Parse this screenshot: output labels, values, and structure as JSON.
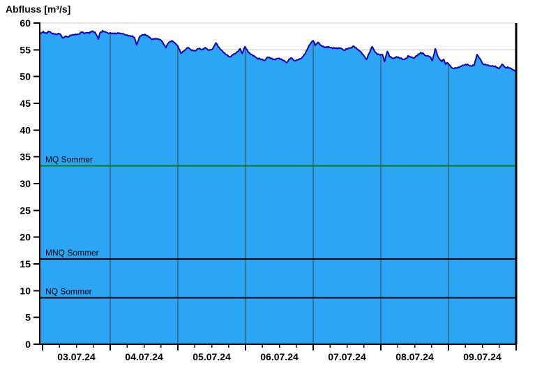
{
  "title": "Abfluss [m³/s]",
  "chart_data": {
    "type": "area",
    "title": "Abfluss [m³/s]",
    "ylabel": "Abfluss [m³/s]",
    "xlabel": "",
    "ylim": [
      0,
      60
    ],
    "y_tick_step": 5,
    "x_tick_labels": [
      "03.07.24",
      "04.07.24",
      "05.07.24",
      "06.07.24",
      "07.07.24",
      "08.07.24",
      "09.07.24"
    ],
    "x_domain_hours": [
      -1,
      168
    ],
    "x_major_tick_hours": 24,
    "x_minor_tick_hours": 6,
    "legend": "none",
    "grid": {
      "horizontal": true,
      "vertical_day_lines": true
    },
    "series": [
      {
        "name": "Abfluss",
        "unit": "m³/s",
        "points": [
          [
            -1,
            57.9
          ],
          [
            0.3,
            58.4
          ],
          [
            1.3,
            58.1
          ],
          [
            2.3,
            58.4
          ],
          [
            3.5,
            58.0
          ],
          [
            4.8,
            57.9
          ],
          [
            6,
            58.0
          ],
          [
            7.2,
            57.2
          ],
          [
            8,
            57.5
          ],
          [
            9,
            57.4
          ],
          [
            10.2,
            57.7
          ],
          [
            11.4,
            57.8
          ],
          [
            12.7,
            57.9
          ],
          [
            13.9,
            58.3
          ],
          [
            14.6,
            58.1
          ],
          [
            15.6,
            58.2
          ],
          [
            16.6,
            58.1
          ],
          [
            17.6,
            58.5
          ],
          [
            18.6,
            58.3
          ],
          [
            19.3,
            57.6
          ],
          [
            19.8,
            57.0
          ],
          [
            20.3,
            58.1
          ],
          [
            21.3,
            58.6
          ],
          [
            22.5,
            58.3
          ],
          [
            23.3,
            58.1
          ],
          [
            24,
            58.2
          ],
          [
            25,
            58.1
          ],
          [
            26,
            58.0
          ],
          [
            27,
            58.1
          ],
          [
            28.2,
            58.0
          ],
          [
            29.4,
            57.8
          ],
          [
            30.7,
            57.6
          ],
          [
            31.9,
            57.6
          ],
          [
            32.6,
            57.3
          ],
          [
            33.4,
            55.9
          ],
          [
            34.3,
            57.3
          ],
          [
            35.3,
            57.8
          ],
          [
            36.3,
            57.9
          ],
          [
            37.6,
            57.4
          ],
          [
            38.8,
            56.9
          ],
          [
            39.8,
            57.1
          ],
          [
            41,
            57.0
          ],
          [
            42.2,
            56.7
          ],
          [
            43.7,
            55.4
          ],
          [
            44.7,
            56.3
          ],
          [
            45.9,
            56.7
          ],
          [
            47.4,
            56.0
          ],
          [
            47.9,
            55.8
          ],
          [
            48.6,
            55.0
          ],
          [
            49.1,
            54.3
          ],
          [
            50.4,
            54.9
          ],
          [
            51.6,
            55.4
          ],
          [
            52.8,
            54.9
          ],
          [
            54.1,
            54.8
          ],
          [
            55.3,
            55.2
          ],
          [
            56.5,
            55.0
          ],
          [
            57.8,
            55.4
          ],
          [
            59,
            54.9
          ],
          [
            60.2,
            55.1
          ],
          [
            61.5,
            56.3
          ],
          [
            62.7,
            55.4
          ],
          [
            63.9,
            54.7
          ],
          [
            65.2,
            54.1
          ],
          [
            66.4,
            53.7
          ],
          [
            67.6,
            54.1
          ],
          [
            68.8,
            54.5
          ],
          [
            70.1,
            55.2
          ],
          [
            70.8,
            54.3
          ],
          [
            71.8,
            55.6
          ],
          [
            73,
            54.5
          ],
          [
            74.3,
            54.1
          ],
          [
            75,
            53.9
          ],
          [
            76.2,
            53.4
          ],
          [
            77.5,
            53.2
          ],
          [
            78.7,
            53.0
          ],
          [
            79.9,
            53.6
          ],
          [
            81.9,
            53.2
          ],
          [
            83.6,
            53.4
          ],
          [
            85.4,
            53.0
          ],
          [
            86.6,
            52.6
          ],
          [
            88.1,
            53.5
          ],
          [
            89.3,
            53.0
          ],
          [
            90.5,
            53.1
          ],
          [
            91.8,
            53.4
          ],
          [
            92.8,
            54.1
          ],
          [
            93.5,
            54.7
          ],
          [
            94.2,
            55.4
          ],
          [
            95.2,
            56.3
          ],
          [
            96,
            56.7
          ],
          [
            96.7,
            55.8
          ],
          [
            97.7,
            56.4
          ],
          [
            98.9,
            55.8
          ],
          [
            100.1,
            55.4
          ],
          [
            101.4,
            55.6
          ],
          [
            102.6,
            55.4
          ],
          [
            103.3,
            55.4
          ],
          [
            104.6,
            55.2
          ],
          [
            105.8,
            55.3
          ],
          [
            107,
            54.9
          ],
          [
            108.3,
            55.2
          ],
          [
            109.5,
            55.4
          ],
          [
            110.2,
            55.7
          ],
          [
            111.2,
            55.4
          ],
          [
            112.7,
            54.7
          ],
          [
            113.7,
            54.1
          ],
          [
            114.9,
            53.2
          ],
          [
            116.2,
            54.7
          ],
          [
            116.9,
            55.6
          ],
          [
            118.1,
            54.5
          ],
          [
            119.4,
            54.1
          ],
          [
            120.6,
            54.1
          ],
          [
            121.3,
            52.8
          ],
          [
            122.3,
            54.7
          ],
          [
            123.1,
            53.7
          ],
          [
            124.3,
            53.4
          ],
          [
            125.5,
            53.7
          ],
          [
            126.8,
            53.4
          ],
          [
            128,
            53.2
          ],
          [
            129.2,
            53.4
          ],
          [
            129.7,
            53.9
          ],
          [
            130.5,
            53.7
          ],
          [
            131.7,
            53.4
          ],
          [
            132.9,
            53.9
          ],
          [
            134.2,
            54.5
          ],
          [
            134.9,
            54.4
          ],
          [
            135.9,
            53.9
          ],
          [
            137.4,
            53.7
          ],
          [
            138.3,
            53.0
          ],
          [
            139.3,
            55.2
          ],
          [
            140.3,
            53.7
          ],
          [
            141.6,
            52.8
          ],
          [
            142.3,
            53.2
          ],
          [
            143,
            52.3
          ],
          [
            143.5,
            52.6
          ],
          [
            144.8,
            51.9
          ],
          [
            145.7,
            51.5
          ],
          [
            147,
            51.6
          ],
          [
            148.2,
            51.9
          ],
          [
            149.4,
            52.1
          ],
          [
            150.7,
            52.3
          ],
          [
            151.9,
            52.0
          ],
          [
            153.1,
            52.1
          ],
          [
            154.1,
            54.1
          ],
          [
            155.1,
            53.4
          ],
          [
            156.3,
            52.3
          ],
          [
            157.6,
            52.1
          ],
          [
            158.8,
            52.0
          ],
          [
            160,
            51.9
          ],
          [
            161.3,
            51.7
          ],
          [
            162,
            51.5
          ],
          [
            163,
            52.3
          ],
          [
            164.2,
            51.7
          ],
          [
            165,
            51.8
          ],
          [
            166.2,
            51.5
          ],
          [
            166.9,
            51.3
          ],
          [
            167.4,
            51.1
          ],
          [
            168,
            51.0
          ]
        ]
      }
    ],
    "reference_lines": [
      {
        "label": "MQ Sommer",
        "value": 33.3,
        "color": "#008200"
      },
      {
        "label": "MNQ Sommer",
        "value": 15.9,
        "color": "#000000"
      },
      {
        "label": "NQ Sommer",
        "value": 8.7,
        "color": "#000000"
      }
    ],
    "colors": {
      "area_fill": "#2DA5F5",
      "line": "#0000C0",
      "h_grid": "#C8C8C8",
      "v_grid": "#404040",
      "axis": "#000000",
      "text": "#000000",
      "background": "#FFFFFF"
    }
  }
}
